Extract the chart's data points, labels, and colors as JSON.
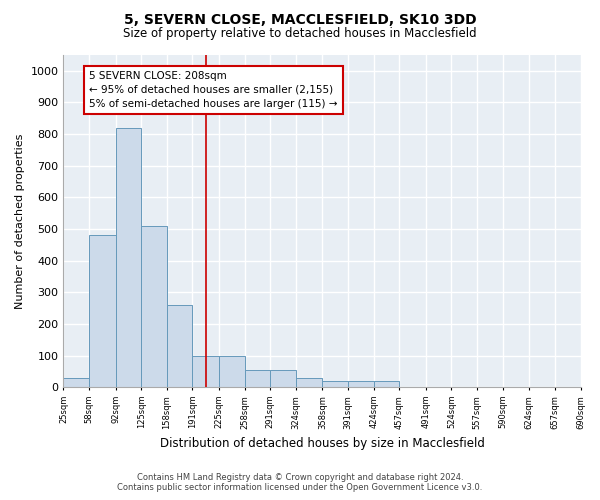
{
  "title1": "5, SEVERN CLOSE, MACCLESFIELD, SK10 3DD",
  "title2": "Size of property relative to detached houses in Macclesfield",
  "xlabel": "Distribution of detached houses by size in Macclesfield",
  "ylabel": "Number of detached properties",
  "footer1": "Contains HM Land Registry data © Crown copyright and database right 2024.",
  "footer2": "Contains public sector information licensed under the Open Government Licence v3.0.",
  "bin_edges": [
    25,
    58,
    92,
    125,
    158,
    191,
    225,
    258,
    291,
    324,
    358,
    391,
    424,
    457,
    491,
    524,
    557,
    590,
    624,
    657,
    690
  ],
  "bar_heights": [
    30,
    480,
    820,
    510,
    260,
    100,
    100,
    55,
    55,
    30,
    20,
    20,
    20,
    0,
    0,
    0,
    0,
    0,
    0,
    0
  ],
  "bar_facecolor": "#ccdaea",
  "bar_edgecolor": "#6699bb",
  "vline_x": 208,
  "vline_color": "#cc0000",
  "annotation_text_line1": "5 SEVERN CLOSE: 208sqm",
  "annotation_text_line2": "← 95% of detached houses are smaller (2,155)",
  "annotation_text_line3": "5% of semi-detached houses are larger (115) →",
  "annotation_box_color": "#cc0000",
  "ylim": [
    0,
    1050
  ],
  "xlim": [
    25,
    690
  ],
  "background_color": "#ffffff",
  "plot_background": "#e8eef4",
  "grid_color": "#ffffff",
  "tick_labels": [
    "25sqm",
    "58sqm",
    "92sqm",
    "125sqm",
    "158sqm",
    "191sqm",
    "225sqm",
    "258sqm",
    "291sqm",
    "324sqm",
    "358sqm",
    "391sqm",
    "424sqm",
    "457sqm",
    "491sqm",
    "524sqm",
    "557sqm",
    "590sqm",
    "624sqm",
    "657sqm",
    "690sqm"
  ],
  "yticks": [
    0,
    100,
    200,
    300,
    400,
    500,
    600,
    700,
    800,
    900,
    1000
  ]
}
